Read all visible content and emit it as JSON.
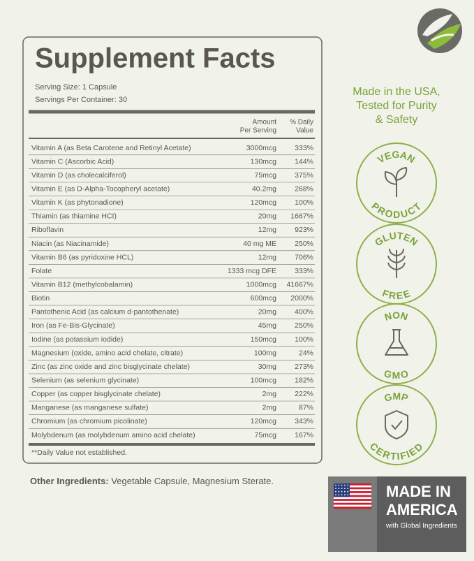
{
  "header": {
    "title": "Supplement Facts",
    "serving_size": "Serving Size: 1 Capsule",
    "servings_per_container": "Servings Per Container: 30"
  },
  "table": {
    "columns": [
      [
        "Amount",
        "Per Serving"
      ],
      [
        "% Daily",
        "Value"
      ]
    ],
    "rows": [
      [
        "Vitamin A (as Beta Carotene and Retinyl Acetate)",
        "3000mcg",
        "333%"
      ],
      [
        "Vitamin C (Ascorbic Acid)",
        "130mcg",
        "144%"
      ],
      [
        "Vitamin D (as cholecalciferol)",
        "75mcg",
        "375%"
      ],
      [
        "Vitamin E (as D-Alpha-Tocopheryl acetate)",
        "40.2mg",
        "268%"
      ],
      [
        "Vitamin K (as phytonadione)",
        "120mcg",
        "100%"
      ],
      [
        "Thiamin (as thiamine HCI)",
        "20mg",
        "1667%"
      ],
      [
        "Riboflavin",
        "12mg",
        "923%"
      ],
      [
        "Niacin (as Niacinamide)",
        "40 mg ME",
        "250%"
      ],
      [
        "Vitamin B6 (as pyridoxine HCL)",
        "12mg",
        "706%"
      ],
      [
        "Folate",
        "1333 mcg DFE",
        "333%"
      ],
      [
        "Vitamin B12 (methylcobalamin)",
        "1000mcg",
        "41667%"
      ],
      [
        "Biotin",
        "600mcg",
        "2000%"
      ],
      [
        "Pantothenic Acid (as calcium d-pantothenate)",
        "20mg",
        "400%"
      ],
      [
        "Iron (as Fe-Bis-Glycinate)",
        "45mg",
        "250%"
      ],
      [
        "Iodine (as potassium iodide)",
        "150mcg",
        "100%"
      ],
      [
        "Magnesium (oxide, amino acid chelate, citrate)",
        "100mg",
        "24%"
      ],
      [
        "Zinc (as zinc oxide and zinc bisglycinate chelate)",
        "30mg",
        "273%"
      ],
      [
        "Selenium (as selenium glycinate)",
        "100mcg",
        "182%"
      ],
      [
        "Copper (as copper bisglycinate chelate)",
        "2mg",
        "222%"
      ],
      [
        "Manganese (as manganese sulfate)",
        "2mg",
        "87%"
      ],
      [
        "Chromium (as chromium picolinate)",
        "120mcg",
        "343%"
      ],
      [
        "Molybdenum (as molybdenum amino acid chelate)",
        "75mcg",
        "167%"
      ]
    ]
  },
  "footnote": "**Daily Value not established.",
  "other_ingredients": {
    "label": "Other Ingredients:",
    "text": "Vegetable Capsule, Magnesium Sterate."
  },
  "tagline": [
    "Made in the USA,",
    "Tested for Purity",
    "& Safety"
  ],
  "badges": [
    {
      "top": "VEGAN",
      "bottom": "PRODUCT"
    },
    {
      "top": "GLUTEN",
      "bottom": "FREE"
    },
    {
      "top": "NON",
      "bottom": "GMO"
    },
    {
      "top": "GMP",
      "bottom": "CERTIFIED"
    }
  ],
  "made_in": {
    "line1": "MADE IN",
    "line2": "AMERICA",
    "line3": "with Global Ingredients"
  }
}
